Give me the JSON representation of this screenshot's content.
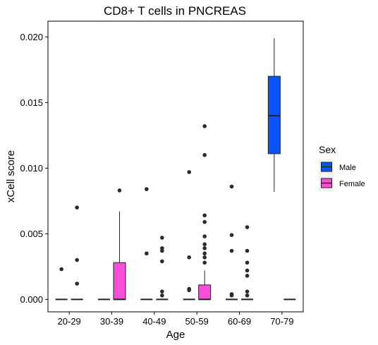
{
  "chart_data": {
    "type": "box",
    "title": "CD8+ T cells in PNCREAS",
    "xlabel": "Age",
    "ylabel": "xCell score",
    "categories": [
      "20-29",
      "30-39",
      "40-49",
      "50-59",
      "60-69",
      "70-79"
    ],
    "ylim": [
      -0.00095,
      0.0212
    ],
    "y_ticks": [
      0.0,
      0.005,
      0.01,
      0.015,
      0.02
    ],
    "y_tick_labels": [
      "0.000",
      "0.005",
      "0.010",
      "0.015",
      "0.020"
    ],
    "grid": false,
    "legend": {
      "title": "Sex",
      "placement": "right",
      "entries": [
        {
          "label": "Male",
          "color": "#0a55fa"
        },
        {
          "label": "Female",
          "color": "#f74fd7"
        }
      ]
    },
    "series": [
      {
        "name": "Male",
        "color": "#0a55fa",
        "boxes": [
          {
            "category": "20-29",
            "min": 0.0,
            "q1": 0.0,
            "median": 0.0,
            "q3": 0.0,
            "max": 0.0,
            "outliers": [
              0.0023
            ]
          },
          {
            "category": "30-39",
            "min": 0.0,
            "q1": 0.0,
            "median": 0.0,
            "q3": 0.0,
            "max": 0.0,
            "outliers": []
          },
          {
            "category": "40-49",
            "min": 0.0,
            "q1": 0.0,
            "median": 0.0,
            "q3": 0.0,
            "max": 0.0,
            "outliers": [
              0.0084,
              0.0035
            ]
          },
          {
            "category": "50-59",
            "min": 0.0,
            "q1": 0.0,
            "median": 0.0,
            "q3": 0.0,
            "max": 0.0,
            "outliers": [
              0.0097,
              0.0032,
              0.0008,
              0.0007
            ]
          },
          {
            "category": "60-69",
            "min": 0.0,
            "q1": 0.0,
            "median": 0.0,
            "q3": 0.0,
            "max": 0.0,
            "outliers": [
              0.0086,
              0.0049,
              0.0037,
              0.0004,
              0.0003
            ]
          },
          {
            "category": "70-79",
            "min": 0.0082,
            "q1": 0.0111,
            "median": 0.014,
            "q3": 0.017,
            "max": 0.0199,
            "outliers": []
          }
        ]
      },
      {
        "name": "Female",
        "color": "#f74fd7",
        "boxes": [
          {
            "category": "20-29",
            "min": 0.0,
            "q1": 0.0,
            "median": 0.0,
            "q3": 0.0,
            "max": 0.0,
            "outliers": [
              0.007,
              0.003,
              0.0012
            ]
          },
          {
            "category": "30-39",
            "min": 0.0,
            "q1": 0.0,
            "median": 0.0,
            "q3": 0.0028,
            "max": 0.0067,
            "outliers": [
              0.0083
            ]
          },
          {
            "category": "40-49",
            "min": 0.0,
            "q1": 0.0,
            "median": 0.0,
            "q3": 0.0,
            "max": 0.0,
            "outliers": [
              0.0047,
              0.0039,
              0.0037,
              0.0029,
              0.0006,
              0.0003
            ]
          },
          {
            "category": "50-59",
            "min": 0.0,
            "q1": 0.0,
            "median": 0.0,
            "q3": 0.0011,
            "max": 0.0022,
            "outliers": [
              0.0132,
              0.011,
              0.0064,
              0.0059,
              0.0048,
              0.0042,
              0.0039,
              0.0035,
              0.0032,
              0.0028
            ]
          },
          {
            "category": "60-69",
            "min": 0.0,
            "q1": 0.0,
            "median": 0.0,
            "q3": 0.0,
            "max": 0.0,
            "outliers": [
              0.0055,
              0.0037,
              0.0028,
              0.0022,
              0.0018,
              0.0006,
              0.0003
            ]
          },
          {
            "category": "70-79",
            "min": 0.0,
            "q1": 0.0,
            "median": 0.0,
            "q3": 0.0,
            "max": 0.0,
            "outliers": []
          }
        ]
      }
    ]
  }
}
